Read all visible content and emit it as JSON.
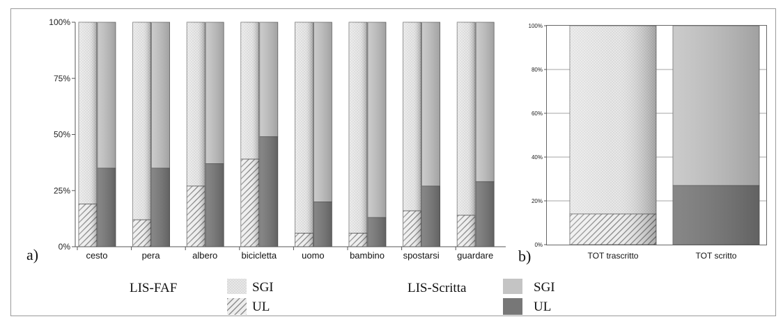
{
  "colors": {
    "ul_written": "#777777",
    "sgi_written": "#c4c4c4",
    "ul_hatch_bg": "#ededed",
    "ul_hatch_line": "#7d7d7d",
    "sgi_dot_bg": "#dadada",
    "sgi_dot_fg": "#f2f2f2",
    "axis": "#555555",
    "grid": "#888888"
  },
  "panel_labels": {
    "a": "a)",
    "b": "b)"
  },
  "legend": {
    "groups": [
      {
        "label": "LIS-FAF",
        "entries": [
          {
            "label": "SGI",
            "swatch": "sgi-dotted"
          },
          {
            "label": "UL",
            "swatch": "ul-hatched"
          }
        ]
      },
      {
        "label": "LIS-Scritta",
        "entries": [
          {
            "label": "SGI",
            "swatch": "sgi-solid"
          },
          {
            "label": "UL",
            "swatch": "ul-solid"
          }
        ]
      }
    ]
  },
  "chart_data": [
    {
      "type": "bar",
      "stacked": true,
      "normalized": true,
      "categories": [
        "cesto",
        "pera",
        "albero",
        "bicicletta",
        "uomo",
        "bambino",
        "spostarsi",
        "guardare"
      ],
      "y_ticks": [
        "0%",
        "25%",
        "50%",
        "75%",
        "100%"
      ],
      "ylim": [
        0,
        100
      ],
      "grid": false,
      "series": [
        {
          "name": "UL",
          "group": "LIS-FAF",
          "values": [
            19,
            12,
            27,
            39,
            6,
            6,
            16,
            14
          ]
        },
        {
          "name": "SGI",
          "group": "LIS-FAF",
          "values": [
            81,
            88,
            73,
            61,
            94,
            94,
            84,
            86
          ]
        },
        {
          "name": "UL",
          "group": "LIS-Scritta",
          "values": [
            35,
            35,
            37,
            49,
            20,
            13,
            27,
            29
          ]
        },
        {
          "name": "SGI",
          "group": "LIS-Scritta",
          "values": [
            65,
            65,
            63,
            51,
            80,
            87,
            73,
            71
          ]
        }
      ]
    },
    {
      "type": "bar",
      "stacked": true,
      "normalized": true,
      "categories": [
        "TOT trascritto",
        "TOT scritto"
      ],
      "y_ticks": [
        "0%",
        "20%",
        "40%",
        "60%",
        "80%",
        "100%"
      ],
      "ylim": [
        0,
        100
      ],
      "grid": true,
      "series": [
        {
          "name": "UL",
          "values": [
            14,
            27
          ]
        },
        {
          "name": "SGI",
          "values": [
            86,
            73
          ]
        }
      ]
    }
  ]
}
